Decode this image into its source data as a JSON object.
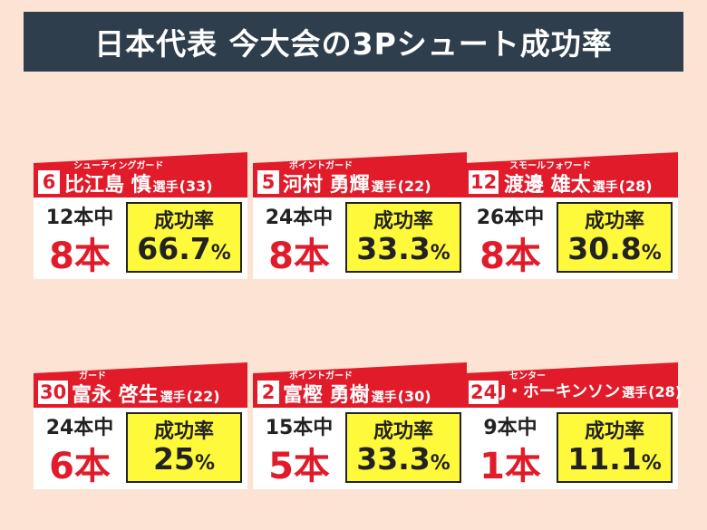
{
  "title": "日本代表 今大会の3Pシュート成功率",
  "rate_label": "成功率",
  "suffix": "選手",
  "percent_sign": "%",
  "players": [
    {
      "number": "6",
      "position": "シューティングガード",
      "name": "比江島 慎",
      "age": "(33)",
      "attempts": "12本中",
      "made": "8本",
      "rate": "66.7"
    },
    {
      "number": "5",
      "position": "ポイントガード",
      "name": "河村 勇輝",
      "age": "(22)",
      "attempts": "24本中",
      "made": "8本",
      "rate": "33.3"
    },
    {
      "number": "12",
      "position": "スモールフォワード",
      "name": "渡邊 雄太",
      "age": "(28)",
      "attempts": "26本中",
      "made": "8本",
      "rate": "30.8"
    },
    {
      "number": "30",
      "position": "ガード",
      "name": "富永 啓生",
      "age": "(22)",
      "attempts": "24本中",
      "made": "6本",
      "rate": "25"
    },
    {
      "number": "2",
      "position": "ポイントガード",
      "name": "富樫 勇樹",
      "age": "(30)",
      "attempts": "15本中",
      "made": "5本",
      "rate": "33.3"
    },
    {
      "number": "24",
      "position": "センター",
      "name": "J・ホーキンソン",
      "age": "(28)",
      "attempts": "9本中",
      "made": "1本",
      "rate": "11.1"
    }
  ],
  "colors": {
    "background": "#fde3d3",
    "title_bg": "#2e3e4c",
    "banner": "#e11b2a",
    "highlight": "#fff93b"
  }
}
